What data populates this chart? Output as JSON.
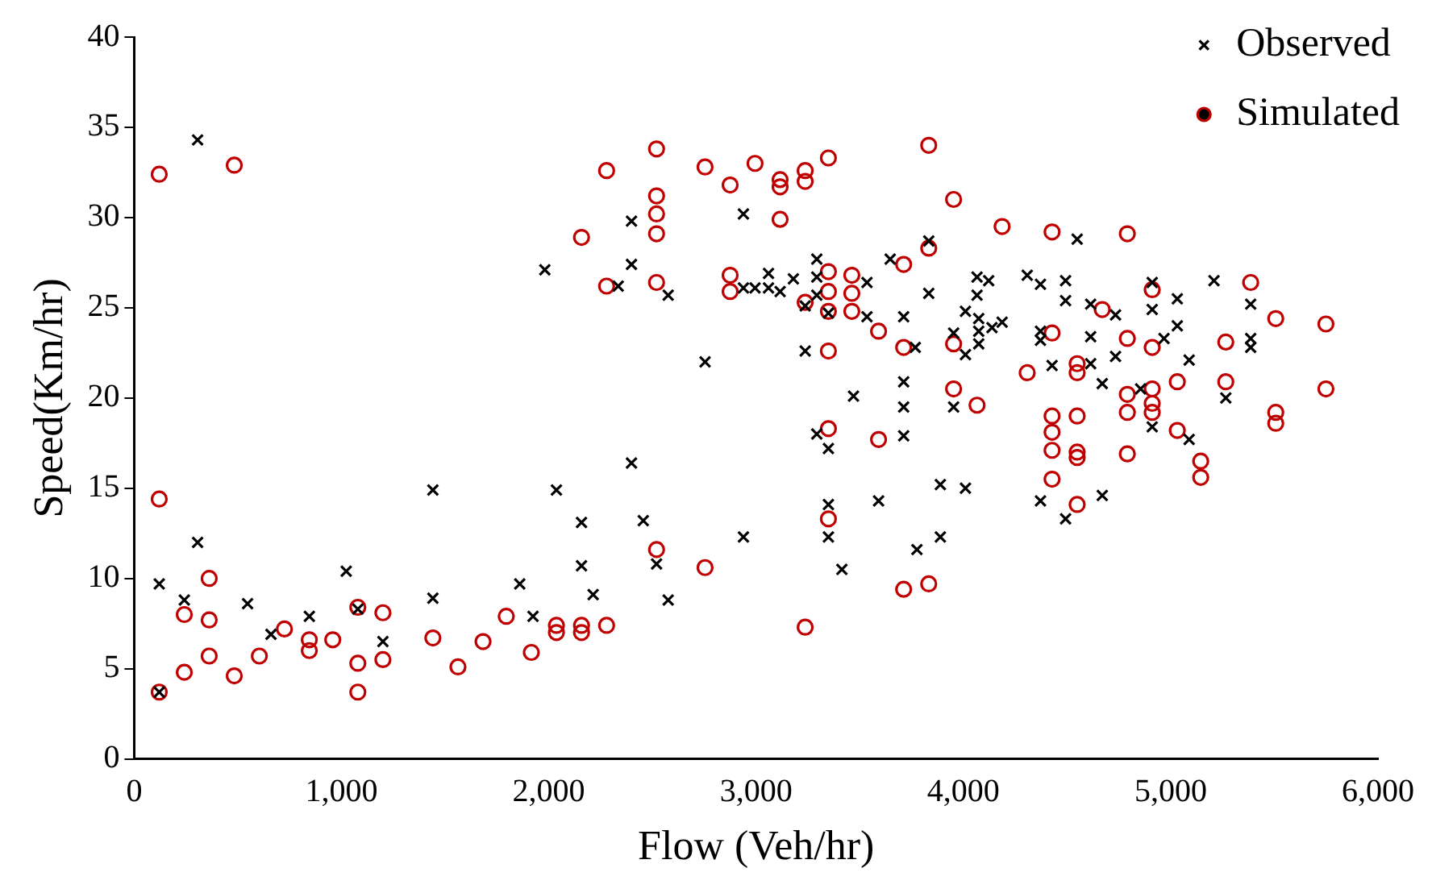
{
  "chart_data": {
    "type": "scatter",
    "xlabel": "Flow (Veh/hr)",
    "ylabel": "Speed(Km/hr)",
    "xlim": [
      0,
      6000
    ],
    "xticks": [
      0,
      {
        "value": 1000,
        "label": "1,000"
      },
      {
        "value": 2000,
        "label": "2,000"
      },
      {
        "value": 3000,
        "label": "3,000"
      },
      {
        "value": 4000,
        "label": "4,000"
      },
      {
        "value": 5000,
        "label": "5,000"
      },
      {
        "value": 6000,
        "label": "6,000"
      }
    ],
    "ylim": [
      0,
      40
    ],
    "yticks": [
      0,
      5,
      10,
      15,
      20,
      25,
      30,
      35,
      40
    ],
    "grid": false,
    "legend": "top right",
    "series": [
      {
        "name": "Observed",
        "color": "#000000",
        "marker": "cross",
        "x": [
          121,
          121,
          242,
          306,
          306,
          547,
          660,
          845,
          1023,
          1079,
          1200,
          1441,
          1441,
          1860,
          1924,
          1981,
          2037,
          2158,
          2158,
          2214,
          2335,
          2399,
          2399,
          2399,
          2456,
          2520,
          2576,
          2576,
          2754,
          2939,
          2939,
          2939,
          2995,
          3060,
          3060,
          3116,
          3180,
          3293,
          3293,
          3237,
          3293,
          3237,
          3349,
          3470,
          3293,
          3349,
          3349,
          3349,
          3414,
          3833,
          3647,
          3535,
          3535,
          3712,
          3768,
          3712,
          3712,
          3712,
          3833,
          3953,
          3953,
          4010,
          4010,
          4066,
          4066,
          4074,
          4074,
          4074,
          4122,
          4138,
          4187,
          4308,
          4372,
          4372,
          4372,
          4493,
          4493,
          4428,
          4614,
          4614,
          4614,
          4670,
          4734,
          4734,
          4549,
          3591,
          3889,
          4010,
          3889,
          3776,
          4372,
          4493,
          4670,
          4855,
          4911,
          4911,
          4911,
          4968,
          5032,
          5032,
          5089,
          5089,
          5209,
          5266,
          5386,
          5386,
          5386
        ],
        "values": [
          3.7,
          9.7,
          8.8,
          12.0,
          34.3,
          8.6,
          6.9,
          7.9,
          10.4,
          8.3,
          6.5,
          14.9,
          8.9,
          9.7,
          7.9,
          27.1,
          14.9,
          13.1,
          10.7,
          9.1,
          26.2,
          29.8,
          27.4,
          16.4,
          13.2,
          10.8,
          8.8,
          25.7,
          22.0,
          30.2,
          12.3,
          26.1,
          26.1,
          26.9,
          26.1,
          25.9,
          26.6,
          27.7,
          26.7,
          22.6,
          25.7,
          25.1,
          24.7,
          20.1,
          18.0,
          17.2,
          14.1,
          12.3,
          10.5,
          28.7,
          27.7,
          26.4,
          24.5,
          24.5,
          22.8,
          20.9,
          19.5,
          17.9,
          25.8,
          23.6,
          19.5,
          24.8,
          22.4,
          26.7,
          25.7,
          24.4,
          23.7,
          23.0,
          26.5,
          23.9,
          24.2,
          26.8,
          26.3,
          23.7,
          23.2,
          26.5,
          25.4,
          21.8,
          25.2,
          23.4,
          21.9,
          20.8,
          24.6,
          22.3,
          28.8,
          14.3,
          15.2,
          15.0,
          12.3,
          11.6,
          14.3,
          13.3,
          14.6,
          20.5,
          26.4,
          24.9,
          18.4,
          23.3,
          25.5,
          24.0,
          22.1,
          17.7,
          26.5,
          20.0,
          25.2,
          23.3,
          22.8
        ]
      },
      {
        "name": "Simulated",
        "color": "#c00000",
        "marker": "circle",
        "x": [
          121,
          483,
          121,
          362,
          242,
          362,
          362,
          242,
          483,
          121,
          604,
          725,
          845,
          845,
          958,
          1079,
          1079,
          1079,
          1200,
          1200,
          1441,
          1562,
          1683,
          1795,
          1916,
          2037,
          2037,
          2158,
          2158,
          2279,
          2158,
          2279,
          2279,
          2520,
          2520,
          2520,
          2520,
          2520,
          2520,
          2754,
          2754,
          2875,
          2875,
          2875,
          2995,
          3116,
          3116,
          3116,
          3237,
          3237,
          3237,
          3237,
          3349,
          3349,
          3349,
          3349,
          3349,
          3349,
          3349,
          3462,
          3462,
          3462,
          3833,
          3953,
          4187,
          4428,
          3712,
          3833,
          3591,
          3712,
          3953,
          4066,
          3953,
          3591,
          3712,
          3833,
          4308,
          4428,
          4549,
          4549,
          4428,
          4428,
          4428,
          4428,
          4549,
          4549,
          4549,
          4549,
          4670,
          4791,
          4791,
          4791,
          4791,
          4791,
          4911,
          4911,
          4911,
          4911,
          4911,
          5032,
          5032,
          5145,
          5145,
          5266,
          5266,
          5386,
          5507,
          5507,
          5507,
          5749,
          5749
        ],
        "values": [
          32.4,
          32.9,
          14.4,
          10.0,
          8.0,
          7.7,
          5.7,
          4.8,
          4.6,
          3.7,
          5.7,
          7.2,
          6.6,
          6.0,
          6.6,
          8.4,
          5.3,
          3.7,
          8.1,
          5.5,
          6.7,
          5.1,
          6.5,
          7.9,
          5.9,
          7.4,
          7.0,
          7.4,
          7.0,
          7.4,
          28.9,
          32.6,
          26.2,
          33.8,
          31.2,
          30.2,
          29.1,
          26.4,
          11.6,
          32.8,
          10.6,
          31.8,
          26.8,
          25.9,
          33.0,
          32.1,
          31.7,
          29.9,
          32.6,
          32.0,
          25.3,
          7.3,
          33.3,
          27.0,
          25.9,
          24.8,
          22.6,
          18.3,
          13.3,
          26.8,
          25.8,
          24.8,
          34.0,
          31.0,
          29.5,
          29.2,
          27.4,
          28.3,
          23.7,
          22.8,
          23.0,
          19.6,
          20.5,
          17.7,
          9.4,
          9.7,
          21.4,
          23.6,
          21.9,
          21.4,
          19.0,
          18.1,
          17.1,
          15.5,
          19.0,
          17.0,
          16.7,
          14.1,
          24.9,
          29.1,
          23.3,
          20.2,
          19.2,
          16.9,
          26.0,
          22.8,
          20.5,
          19.7,
          19.2,
          20.9,
          18.2,
          16.5,
          15.6,
          23.1,
          20.9,
          26.4,
          24.4,
          19.2,
          18.6,
          24.1,
          20.5
        ]
      }
    ]
  }
}
